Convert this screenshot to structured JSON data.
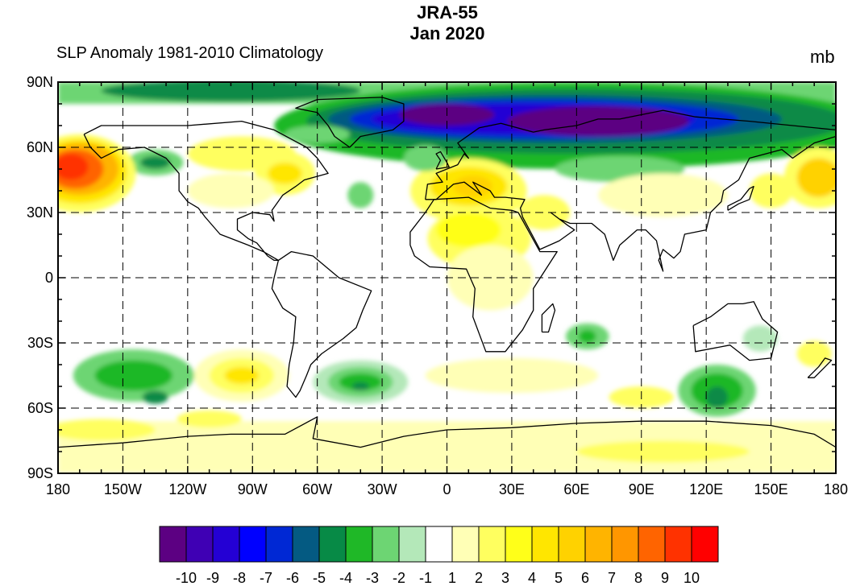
{
  "title": {
    "line1": "JRA-55",
    "line2": "Jan 2020"
  },
  "left_subtitle": "SLP Anomaly 1981-2010 Climatology",
  "right_subtitle": "mb",
  "map": {
    "projection": "cylindrical-equidistant",
    "lat_labels": [
      "90N",
      "60N",
      "30N",
      "0",
      "30S",
      "60S",
      "90S"
    ],
    "lon_labels": [
      "180",
      "150W",
      "120W",
      "90W",
      "60W",
      "30W",
      "0",
      "30E",
      "60E",
      "90E",
      "120E",
      "150E",
      "180"
    ],
    "gridlines": "dashed, 30 degree",
    "field": "sea level pressure anomaly"
  },
  "colorbar": {
    "labels": [
      "-10",
      "-9",
      "-8",
      "-7",
      "-6",
      "-5",
      "-4",
      "-3",
      "-2",
      "-1",
      "1",
      "2",
      "3",
      "4",
      "5",
      "6",
      "7",
      "8",
      "9",
      "10"
    ],
    "colors": [
      "#5c0082",
      "#3f00b4",
      "#2400d4",
      "#0000ff",
      "#0028d4",
      "#045a82",
      "#078a46",
      "#1fb827",
      "#6dd573",
      "#b4e8b9",
      "#ffffff",
      "#ffffb6",
      "#ffff5f",
      "#ffff19",
      "#ffe600",
      "#ffd200",
      "#ffb400",
      "#ff9600",
      "#ff6400",
      "#ff3200",
      "#ff0000"
    ]
  }
}
